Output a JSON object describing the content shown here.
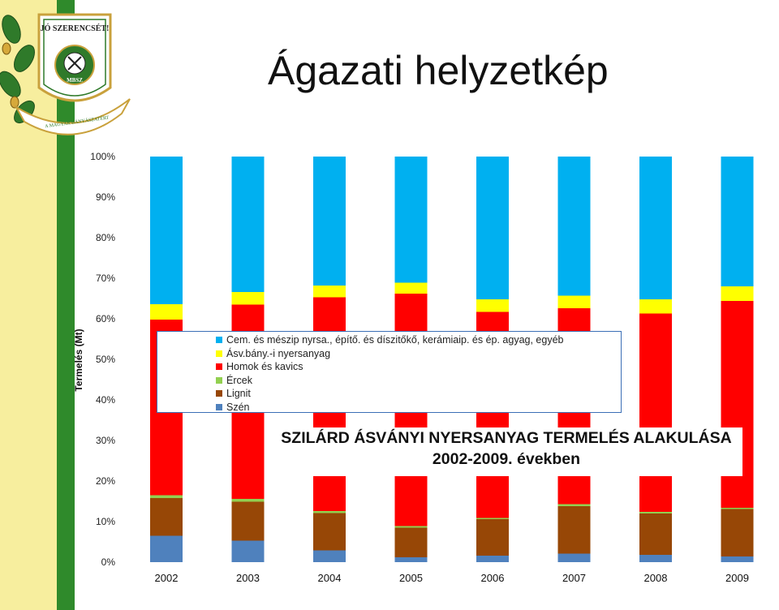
{
  "slide": {
    "title": "Ágazati helyzetkép"
  },
  "logo": {
    "top_text": "JÓ SZERENCSÉT!",
    "center_text": "MBSZ",
    "bottom_text": "A MAGYAR BÁNYÁSZATÉRT",
    "icon": "hammer-and-pick-emblem"
  },
  "chart_caption": {
    "line1": "SZILÁRD ÁSVÁNYI NYERSANYAG TERMELÉS ALAKULÁSA",
    "line2": "2002-2009. években"
  },
  "chart_data": {
    "type": "bar",
    "stacked": "percent",
    "ylabel": "Termelés (Mt)",
    "ylim": [
      0,
      100
    ],
    "yticks": [
      "0%",
      "10%",
      "20%",
      "30%",
      "40%",
      "50%",
      "60%",
      "70%",
      "80%",
      "90%",
      "100%"
    ],
    "categories": [
      "2002",
      "2003",
      "2004",
      "2005",
      "2006",
      "2007",
      "2008",
      "2009"
    ],
    "series": [
      {
        "name": "Szén",
        "color": "#4f81bd",
        "values": [
          6.5,
          5.3,
          2.9,
          1.2,
          1.6,
          2.1,
          1.8,
          1.4
        ]
      },
      {
        "name": "Lignit",
        "color": "#974706",
        "values": [
          9.3,
          9.6,
          9.2,
          7.3,
          9.0,
          11.7,
          10.2,
          11.7
        ]
      },
      {
        "name": "Ércek",
        "color": "#92d050",
        "values": [
          0.7,
          0.7,
          0.5,
          0.4,
          0.3,
          0.5,
          0.4,
          0.3
        ]
      },
      {
        "name": "Homok és kavics",
        "color": "#ff0000",
        "values": [
          43.3,
          47.9,
          52.7,
          57.3,
          50.8,
          48.3,
          48.9,
          51.0
        ]
      },
      {
        "name": "Ásv.bány.-i nyersanyag",
        "color": "#ffff00",
        "values": [
          3.8,
          3.1,
          2.9,
          2.7,
          3.1,
          3.1,
          3.5,
          3.6
        ]
      },
      {
        "name": "Cem. és mészip nyrsa., építő. és díszitőkő, kerámiaip. és ép. agyag, egyéb",
        "color": "#00b0f0",
        "values": [
          36.4,
          33.4,
          31.8,
          31.1,
          35.2,
          34.3,
          35.2,
          32.0
        ]
      }
    ],
    "legend_position": "overlay-center",
    "grid": false
  }
}
